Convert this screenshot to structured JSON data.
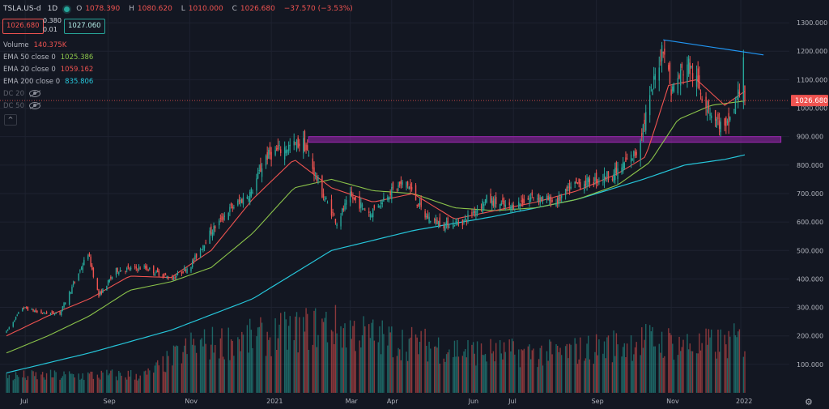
{
  "header": {
    "symbol": "TSLA.US-d",
    "timeframe": "1D",
    "ohlc": [
      {
        "label": "O",
        "value": "1078.390"
      },
      {
        "label": "H",
        "value": "1080.620"
      },
      {
        "label": "L",
        "value": "1010.000"
      },
      {
        "label": "C",
        "value": "1026.680"
      },
      {
        "label": "",
        "value": "−37.570 (−3.53%)"
      }
    ],
    "bid": "1026.680",
    "ask": "1027.060",
    "spread_top": "0.380",
    "spread_bottom": "0.01"
  },
  "indicators": [
    {
      "name": "Volume",
      "value": "140.375K",
      "color": "#ef5350"
    },
    {
      "name": "EMA 50 close 0",
      "value": "1025.386",
      "color": "#8bc34a"
    },
    {
      "name": "EMA 20 close 0",
      "value": "1059.162",
      "color": "#ef5350"
    },
    {
      "name": "EMA 200 close 0",
      "value": "835.806",
      "color": "#26c6da"
    }
  ],
  "hidden_indicators": [
    {
      "name": "DC 20"
    },
    {
      "name": "DC 50"
    }
  ],
  "colors": {
    "up": "#26a69a",
    "down": "#ef5350",
    "ema20": "#ef5350",
    "ema50": "#8bc34a",
    "ema200": "#26c6da",
    "trendline": "#2196f3",
    "zone": "#9c27b0",
    "bg": "#131722"
  },
  "chart_data": {
    "type": "candlestick",
    "y_axis": {
      "ticks": [
        100,
        200,
        300,
        400,
        500,
        600,
        700,
        800,
        900,
        1000,
        1100,
        1200,
        1300
      ],
      "tick_labels": [
        "100.000",
        "200.000",
        "300.000",
        "400.000",
        "500.000",
        "600.000",
        "700.000",
        "800.000",
        "900.000",
        "1000.000",
        "1100.000",
        "1200.000",
        "1300.000"
      ],
      "range": [
        0,
        1360
      ]
    },
    "x_axis": {
      "labels": [
        "Jul",
        "Sep",
        "Nov",
        "2021",
        "Mar",
        "Apr",
        "Jun",
        "Jul",
        "Sep",
        "Nov",
        "2022"
      ],
      "start": "2020-07-01",
      "end": "2022-01-04"
    },
    "last_price": 1026.68,
    "last_price_label": "1026.680",
    "price_path": [
      [
        "2020-07-01",
        215
      ],
      [
        "2020-07-13",
        300
      ],
      [
        "2020-07-27",
        280
      ],
      [
        "2020-08-10",
        280
      ],
      [
        "2020-08-31",
        490
      ],
      [
        "2020-09-08",
        340
      ],
      [
        "2020-09-21",
        430
      ],
      [
        "2020-10-12",
        440
      ],
      [
        "2020-11-02",
        400
      ],
      [
        "2020-11-16",
        450
      ],
      [
        "2020-11-30",
        560
      ],
      [
        "2020-12-14",
        640
      ],
      [
        "2020-12-31",
        705
      ],
      [
        "2021-01-11",
        830
      ],
      [
        "2021-01-25",
        860
      ],
      [
        "2021-02-08",
        880
      ],
      [
        "2021-02-22",
        700
      ],
      [
        "2021-03-05",
        600
      ],
      [
        "2021-03-15",
        690
      ],
      [
        "2021-03-30",
        630
      ],
      [
        "2021-04-12",
        700
      ],
      [
        "2021-04-26",
        740
      ],
      [
        "2021-05-10",
        620
      ],
      [
        "2021-05-24",
        590
      ],
      [
        "2021-06-07",
        600
      ],
      [
        "2021-06-25",
        680
      ],
      [
        "2021-07-12",
        650
      ],
      [
        "2021-07-30",
        690
      ],
      [
        "2021-08-16",
        670
      ],
      [
        "2021-08-30",
        730
      ],
      [
        "2021-09-13",
        745
      ],
      [
        "2021-09-30",
        775
      ],
      [
        "2021-10-15",
        845
      ],
      [
        "2021-10-25",
        1030
      ],
      [
        "2021-11-04",
        1230
      ],
      [
        "2021-11-10",
        1060
      ],
      [
        "2021-11-22",
        1160
      ],
      [
        "2021-12-03",
        1050
      ],
      [
        "2021-12-13",
        960
      ],
      [
        "2021-12-21",
        920
      ],
      [
        "2021-12-31",
        1060
      ],
      [
        "2022-01-03",
        1199
      ],
      [
        "2022-01-04",
        1026.68
      ]
    ],
    "ema20_path": [
      [
        "2020-07-01",
        200
      ],
      [
        "2020-08-01",
        270
      ],
      [
        "2020-09-01",
        330
      ],
      [
        "2020-10-01",
        410
      ],
      [
        "2020-11-01",
        405
      ],
      [
        "2020-12-01",
        500
      ],
      [
        "2021-01-01",
        680
      ],
      [
        "2021-02-01",
        820
      ],
      [
        "2021-03-01",
        720
      ],
      [
        "2021-04-01",
        670
      ],
      [
        "2021-05-01",
        700
      ],
      [
        "2021-06-01",
        610
      ],
      [
        "2021-07-01",
        640
      ],
      [
        "2021-08-01",
        670
      ],
      [
        "2021-09-01",
        710
      ],
      [
        "2021-10-01",
        770
      ],
      [
        "2021-10-22",
        830
      ],
      [
        "2021-11-08",
        1080
      ],
      [
        "2021-11-29",
        1100
      ],
      [
        "2021-12-20",
        1010
      ],
      [
        "2022-01-04",
        1059.162
      ]
    ],
    "ema50_path": [
      [
        "2020-07-01",
        140
      ],
      [
        "2020-08-01",
        200
      ],
      [
        "2020-09-01",
        270
      ],
      [
        "2020-10-01",
        360
      ],
      [
        "2020-11-01",
        390
      ],
      [
        "2020-12-01",
        440
      ],
      [
        "2021-01-01",
        560
      ],
      [
        "2021-02-01",
        720
      ],
      [
        "2021-03-01",
        750
      ],
      [
        "2021-04-01",
        710
      ],
      [
        "2021-05-01",
        700
      ],
      [
        "2021-06-01",
        650
      ],
      [
        "2021-07-01",
        640
      ],
      [
        "2021-08-01",
        650
      ],
      [
        "2021-09-01",
        680
      ],
      [
        "2021-10-01",
        730
      ],
      [
        "2021-10-25",
        810
      ],
      [
        "2021-11-15",
        960
      ],
      [
        "2021-12-10",
        1010
      ],
      [
        "2022-01-04",
        1025.386
      ]
    ],
    "ema200_path": [
      [
        "2020-07-01",
        70
      ],
      [
        "2020-09-01",
        140
      ],
      [
        "2020-11-01",
        220
      ],
      [
        "2021-01-01",
        330
      ],
      [
        "2021-03-01",
        500
      ],
      [
        "2021-05-01",
        570
      ],
      [
        "2021-07-01",
        620
      ],
      [
        "2021-09-01",
        680
      ],
      [
        "2021-10-20",
        750
      ],
      [
        "2021-11-20",
        800
      ],
      [
        "2021-12-20",
        820
      ],
      [
        "2022-01-04",
        835.806
      ]
    ],
    "support_zone": {
      "from": "2021-02-01",
      "to": "2022-01-31",
      "low": 880,
      "high": 900
    },
    "trendline": [
      [
        "2021-11-04",
        1240
      ],
      [
        "2022-01-18",
        1187
      ]
    ],
    "volume_profile": [
      [
        "2020-07-01",
        0.22
      ],
      [
        "2020-10-14",
        0.24
      ],
      [
        "2020-11-16",
        0.62
      ],
      [
        "2021-01-11",
        0.75
      ],
      [
        "2021-02-25",
        0.9
      ],
      [
        "2021-04-15",
        0.7
      ],
      [
        "2021-06-15",
        0.55
      ],
      [
        "2021-08-15",
        0.52
      ],
      [
        "2021-10-25",
        0.7
      ],
      [
        "2021-11-30",
        0.62
      ],
      [
        "2022-01-04",
        0.7
      ]
    ]
  }
}
